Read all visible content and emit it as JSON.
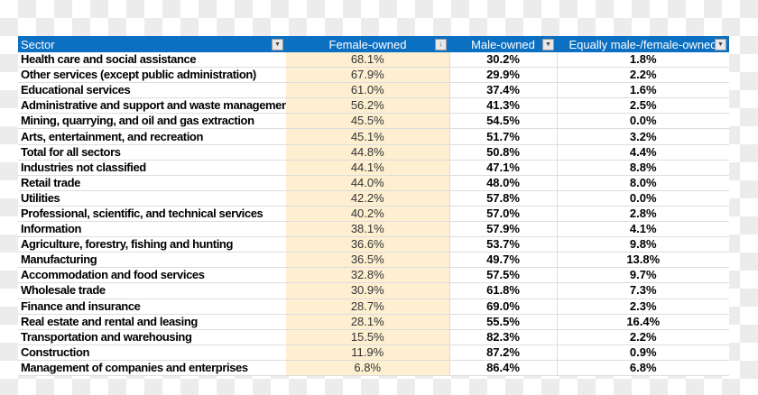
{
  "headers": [
    "Sector",
    "Female-owned",
    "Male-owned",
    "Equally male-/female-owned"
  ],
  "header_icons": [
    "filter-dropdown-icon",
    "sort-descending-icon",
    "filter-dropdown-icon",
    "filter-dropdown-icon"
  ],
  "colors": {
    "header": "#0b6fc2",
    "female_column": "#fdefd0"
  },
  "rows": [
    [
      "Health care and social assistance",
      "68.1%",
      "30.2%",
      "1.8%"
    ],
    [
      "Other services (except public administration)",
      "67.9%",
      "29.9%",
      "2.2%"
    ],
    [
      "Educational services",
      "61.0%",
      "37.4%",
      "1.6%"
    ],
    [
      "Administrative and support and waste management",
      "56.2%",
      "41.3%",
      "2.5%"
    ],
    [
      "Mining, quarrying, and oil and gas extraction",
      "45.5%",
      "54.5%",
      "0.0%"
    ],
    [
      "Arts, entertainment, and recreation",
      "45.1%",
      "51.7%",
      "3.2%"
    ],
    [
      "Total for all sectors",
      "44.8%",
      "50.8%",
      "4.4%"
    ],
    [
      "Industries not classified",
      "44.1%",
      "47.1%",
      "8.8%"
    ],
    [
      "Retail trade",
      "44.0%",
      "48.0%",
      "8.0%"
    ],
    [
      "Utilities",
      "42.2%",
      "57.8%",
      "0.0%"
    ],
    [
      "Professional, scientific, and technical services",
      "40.2%",
      "57.0%",
      "2.8%"
    ],
    [
      "Information",
      "38.1%",
      "57.9%",
      "4.1%"
    ],
    [
      "Agriculture, forestry, fishing and hunting",
      "36.6%",
      "53.7%",
      "9.8%"
    ],
    [
      "Manufacturing",
      "36.5%",
      "49.7%",
      "13.8%"
    ],
    [
      "Accommodation and food services",
      "32.8%",
      "57.5%",
      "9.7%"
    ],
    [
      "Wholesale trade",
      "30.9%",
      "61.8%",
      "7.3%"
    ],
    [
      "Finance and insurance",
      "28.7%",
      "69.0%",
      "2.3%"
    ],
    [
      "Real estate and rental and leasing",
      "28.1%",
      "55.5%",
      "16.4%"
    ],
    [
      "Transportation and warehousing",
      "15.5%",
      "82.3%",
      "2.2%"
    ],
    [
      "Construction",
      "11.9%",
      "87.2%",
      "0.9%"
    ],
    [
      "Management of companies and enterprises",
      "6.8%",
      "86.4%",
      "6.8%"
    ]
  ]
}
